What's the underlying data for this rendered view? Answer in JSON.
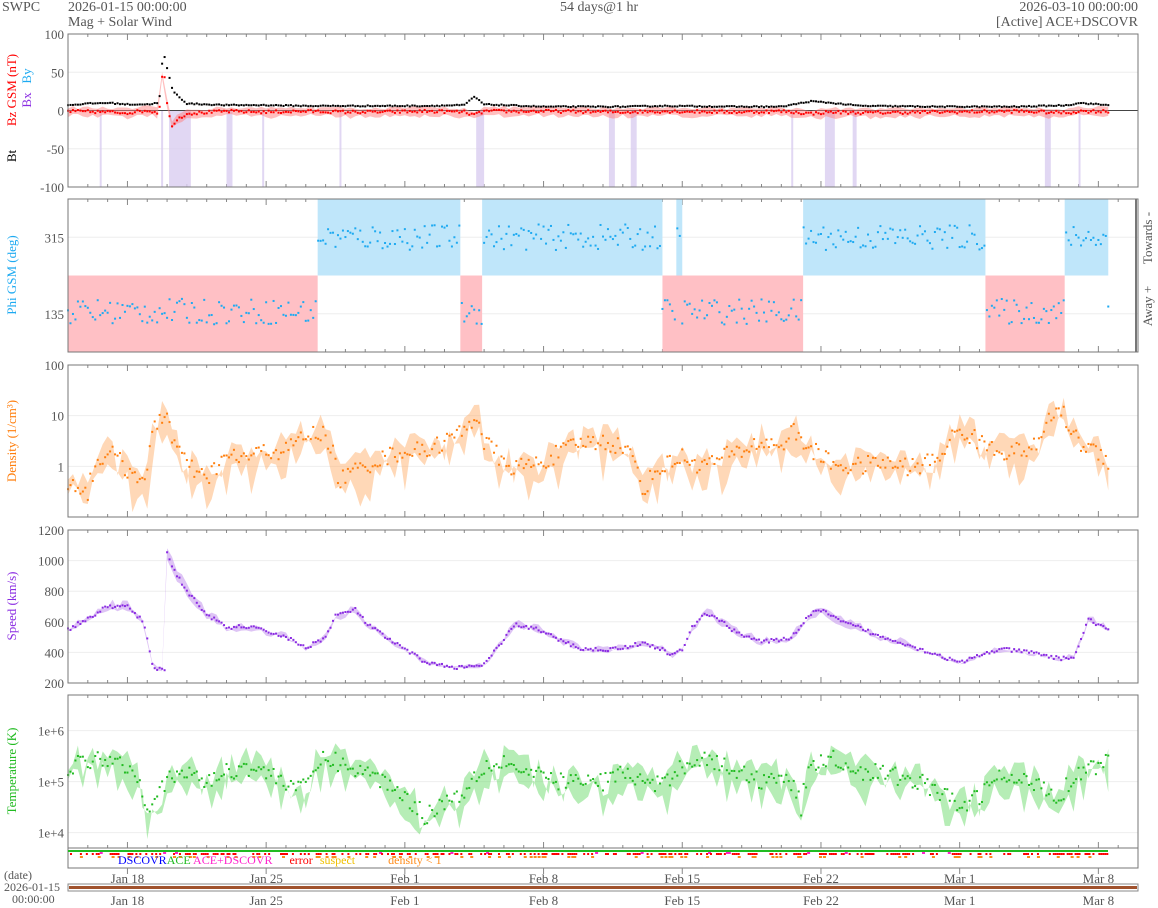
{
  "header": {
    "org": "SWPC",
    "start": "2026-01-15 00:00:00",
    "product": "Mag + Solar Wind",
    "span": "54 days@1 hr",
    "end": "2026-03-10 00:00:00",
    "source_status": "[Active] ACE+DSCOVR"
  },
  "colors": {
    "bt": "#000000",
    "bz": "#ff0000",
    "bx": "#8a2be2",
    "by": "#1eaaf1",
    "phi": "#1eaaf1",
    "density": "#ff7f0e",
    "speed": "#8a2be2",
    "temperature": "#22bb22",
    "towards": "#bfe6fa",
    "away": "#ffc0c5"
  },
  "chart_data": [
    {
      "type": "scatter",
      "name": "mag",
      "ylabel_parts": [
        "Bt",
        "Bz GSM (nT)",
        "Bx",
        "By"
      ],
      "ylim": [
        -100,
        100
      ],
      "yticks": [
        "100",
        "50",
        "0",
        "-50",
        "-100"
      ],
      "ytick_values": [
        100,
        50,
        0,
        -50,
        -100
      ],
      "series": [
        {
          "name": "Bt",
          "points": [
            [
              0,
              7
            ],
            [
              1,
              9
            ],
            [
              2,
              10
            ],
            [
              3,
              8
            ],
            [
              4,
              8
            ],
            [
              4.6,
              10
            ],
            [
              4.8,
              78
            ],
            [
              5,
              55
            ],
            [
              5.3,
              25
            ],
            [
              5.6,
              18
            ],
            [
              6,
              9
            ],
            [
              8,
              7
            ],
            [
              10,
              7
            ],
            [
              12,
              6
            ],
            [
              14,
              6
            ],
            [
              16,
              6
            ],
            [
              18,
              6
            ],
            [
              20,
              7
            ],
            [
              20.5,
              18
            ],
            [
              21,
              8
            ],
            [
              24,
              5
            ],
            [
              28,
              5
            ],
            [
              30,
              6
            ],
            [
              34,
              5
            ],
            [
              36,
              5
            ],
            [
              37.5,
              12
            ],
            [
              38.5,
              10
            ],
            [
              40,
              6
            ],
            [
              44,
              5
            ],
            [
              48,
              5
            ],
            [
              50.5,
              7
            ],
            [
              51,
              10
            ],
            [
              52.5,
              7
            ]
          ]
        },
        {
          "name": "Bz GSM",
          "points": [
            [
              0,
              -1
            ],
            [
              2,
              -2
            ],
            [
              3,
              -3
            ],
            [
              4,
              0
            ],
            [
              4.6,
              -3
            ],
            [
              4.8,
              62
            ],
            [
              5,
              10
            ],
            [
              5.2,
              -20
            ],
            [
              5.6,
              -10
            ],
            [
              6,
              -4
            ],
            [
              8,
              -1
            ],
            [
              10,
              -2
            ],
            [
              12,
              -1
            ],
            [
              14,
              -2
            ],
            [
              16,
              -2
            ],
            [
              18,
              -1
            ],
            [
              20,
              -2
            ],
            [
              20.5,
              -6
            ],
            [
              21,
              -1
            ],
            [
              24,
              -1
            ],
            [
              28,
              -2
            ],
            [
              30,
              -1
            ],
            [
              34,
              -2
            ],
            [
              36,
              -1
            ],
            [
              37.5,
              -4
            ],
            [
              38.5,
              -2
            ],
            [
              40,
              -3
            ],
            [
              44,
              -2
            ],
            [
              48,
              -1
            ],
            [
              50.5,
              -3
            ],
            [
              51,
              -1
            ],
            [
              52.5,
              -1
            ]
          ]
        }
      ],
      "southward_intervals_days": [
        [
          1.6,
          1.7
        ],
        [
          4.7,
          4.8
        ],
        [
          5.1,
          6.2
        ],
        [
          8.0,
          8.3
        ],
        [
          9.8,
          9.9
        ],
        [
          13.7,
          13.8
        ],
        [
          20.6,
          21.0
        ],
        [
          27.3,
          27.6
        ],
        [
          28.4,
          28.7
        ],
        [
          36.5,
          36.6
        ],
        [
          38.2,
          38.7
        ],
        [
          39.6,
          39.8
        ],
        [
          49.3,
          49.6
        ],
        [
          51.0,
          51.1
        ]
      ]
    },
    {
      "type": "scatter",
      "name": "phi",
      "ylabel": "Phi GSM (deg)",
      "ylim": [
        45,
        405
      ],
      "yticks": [
        "315",
        "135"
      ],
      "ytick_values": [
        315,
        135
      ],
      "right_labels": [
        "Towards -",
        "Away +"
      ],
      "towards_sectors_days": [
        [
          12.6,
          19.8
        ],
        [
          20.9,
          30.0
        ],
        [
          30.7,
          31.0
        ],
        [
          37.1,
          46.3
        ],
        [
          50.3,
          52.5
        ]
      ],
      "away_sectors_days": [
        [
          0,
          12.6
        ],
        [
          19.8,
          20.9
        ],
        [
          30.0,
          37.1
        ],
        [
          46.3,
          50.3
        ]
      ],
      "typical_towards_deg": 315,
      "typical_away_deg": 140
    },
    {
      "type": "scatter",
      "name": "density",
      "ylabel": "Density (1/cm³)",
      "yscale": "log",
      "ylim": [
        0.1,
        100
      ],
      "yticks": [
        "100",
        "10",
        "1"
      ],
      "ytick_values": [
        100,
        10,
        1
      ],
      "points": [
        [
          0,
          0.5
        ],
        [
          1,
          0.3
        ],
        [
          2,
          2
        ],
        [
          3,
          0.8
        ],
        [
          4,
          0.6
        ],
        [
          4.9,
          12
        ],
        [
          5.3,
          3
        ],
        [
          6,
          1
        ],
        [
          7,
          0.5
        ],
        [
          8,
          1.5
        ],
        [
          9,
          1.5
        ],
        [
          10,
          2
        ],
        [
          11,
          2
        ],
        [
          12,
          4
        ],
        [
          12.9,
          4.5
        ],
        [
          13.6,
          0.5
        ],
        [
          15,
          1
        ],
        [
          16,
          1.5
        ],
        [
          17,
          2
        ],
        [
          18,
          2
        ],
        [
          19,
          3
        ],
        [
          20,
          5
        ],
        [
          20.6,
          10
        ],
        [
          21,
          3
        ],
        [
          22,
          1
        ],
        [
          23,
          1
        ],
        [
          24,
          1.2
        ],
        [
          25,
          2
        ],
        [
          26,
          3
        ],
        [
          27,
          3
        ],
        [
          28,
          2.5
        ],
        [
          29,
          0.3
        ],
        [
          30,
          1
        ],
        [
          31,
          1.5
        ],
        [
          32,
          1
        ],
        [
          33,
          1.5
        ],
        [
          34,
          2
        ],
        [
          35,
          3
        ],
        [
          36,
          2.5
        ],
        [
          36.6,
          5
        ],
        [
          37,
          3
        ],
        [
          38,
          1.5
        ],
        [
          39,
          1
        ],
        [
          40,
          1
        ],
        [
          41,
          1.2
        ],
        [
          42,
          1
        ],
        [
          43,
          1
        ],
        [
          44,
          1.5
        ],
        [
          45,
          5
        ],
        [
          46,
          3
        ],
        [
          47,
          2
        ],
        [
          48,
          2
        ],
        [
          49,
          2.5
        ],
        [
          50,
          14
        ],
        [
          50.6,
          5
        ],
        [
          51,
          3
        ],
        [
          52.5,
          1.3
        ]
      ]
    },
    {
      "type": "scatter",
      "name": "speed",
      "ylabel": "Speed (km/s)",
      "ylim": [
        200,
        1200
      ],
      "yticks": [
        "1200",
        "1000",
        "800",
        "600",
        "400",
        "200"
      ],
      "ytick_values": [
        1200,
        1000,
        800,
        600,
        400,
        200
      ],
      "points": [
        [
          0,
          550
        ],
        [
          1,
          620
        ],
        [
          2,
          700
        ],
        [
          3,
          700
        ],
        [
          3.8,
          600
        ],
        [
          4.3,
          300
        ],
        [
          4.9,
          290
        ],
        [
          5.0,
          1050
        ],
        [
          5.3,
          950
        ],
        [
          6,
          800
        ],
        [
          7,
          650
        ],
        [
          8,
          560
        ],
        [
          9,
          570
        ],
        [
          10,
          540
        ],
        [
          11,
          500
        ],
        [
          12,
          430
        ],
        [
          13,
          500
        ],
        [
          13.5,
          640
        ],
        [
          14.5,
          680
        ],
        [
          15,
          600
        ],
        [
          16,
          500
        ],
        [
          17,
          420
        ],
        [
          18,
          340
        ],
        [
          19,
          310
        ],
        [
          20,
          300
        ],
        [
          21,
          320
        ],
        [
          22,
          480
        ],
        [
          22.5,
          580
        ],
        [
          23.5,
          560
        ],
        [
          25,
          470
        ],
        [
          26,
          420
        ],
        [
          27.5,
          420
        ],
        [
          29,
          460
        ],
        [
          30,
          420
        ],
        [
          30.5,
          380
        ],
        [
          31,
          420
        ],
        [
          31.5,
          560
        ],
        [
          32,
          640
        ],
        [
          32.5,
          650
        ],
        [
          33.5,
          550
        ],
        [
          34,
          520
        ],
        [
          35,
          470
        ],
        [
          36,
          480
        ],
        [
          36.5,
          500
        ],
        [
          37.5,
          650
        ],
        [
          38,
          680
        ],
        [
          39,
          600
        ],
        [
          40,
          560
        ],
        [
          41,
          500
        ],
        [
          42,
          470
        ],
        [
          43,
          420
        ],
        [
          44,
          380
        ],
        [
          45,
          330
        ],
        [
          46,
          380
        ],
        [
          47,
          420
        ],
        [
          48,
          410
        ],
        [
          49,
          390
        ],
        [
          50,
          360
        ],
        [
          50.8,
          370
        ],
        [
          51.5,
          620
        ],
        [
          52.5,
          540
        ]
      ]
    },
    {
      "type": "scatter",
      "name": "temperature",
      "ylabel": "Temperature (K)",
      "yscale": "log",
      "ylim": [
        5000,
        5000000
      ],
      "yticks": [
        "1e+6",
        "1e+5",
        "1e+4"
      ],
      "ytick_values": [
        1000000,
        100000,
        10000
      ],
      "points": [
        [
          0,
          200000
        ],
        [
          1,
          250000
        ],
        [
          2,
          300000
        ],
        [
          3,
          200000
        ],
        [
          4,
          30000
        ],
        [
          5,
          100000
        ],
        [
          6,
          150000
        ],
        [
          7,
          100000
        ],
        [
          8,
          150000
        ],
        [
          9,
          200000
        ],
        [
          10,
          150000
        ],
        [
          11,
          100000
        ],
        [
          12,
          70000
        ],
        [
          13,
          300000
        ],
        [
          14,
          200000
        ],
        [
          15,
          150000
        ],
        [
          16,
          100000
        ],
        [
          17,
          50000
        ],
        [
          18,
          20000
        ],
        [
          19,
          40000
        ],
        [
          20,
          60000
        ],
        [
          21,
          200000
        ],
        [
          22,
          250000
        ],
        [
          23,
          150000
        ],
        [
          24,
          120000
        ],
        [
          25,
          100000
        ],
        [
          26,
          100000
        ],
        [
          27,
          100000
        ],
        [
          28,
          150000
        ],
        [
          29,
          100000
        ],
        [
          30,
          80000
        ],
        [
          31,
          200000
        ],
        [
          32,
          300000
        ],
        [
          33,
          200000
        ],
        [
          34,
          150000
        ],
        [
          35,
          100000
        ],
        [
          36,
          150000
        ],
        [
          37,
          30000
        ],
        [
          38,
          300000
        ],
        [
          39,
          250000
        ],
        [
          40,
          150000
        ],
        [
          41,
          150000
        ],
        [
          42,
          120000
        ],
        [
          43,
          100000
        ],
        [
          44,
          60000
        ],
        [
          45,
          30000
        ],
        [
          46,
          50000
        ],
        [
          47,
          120000
        ],
        [
          48,
          100000
        ],
        [
          49,
          100000
        ],
        [
          50,
          40000
        ],
        [
          51,
          150000
        ],
        [
          52.5,
          250000
        ]
      ]
    }
  ],
  "source_legend": [
    {
      "label": "DSCOVR",
      "color": "#0000ff"
    },
    {
      "label": "ACE",
      "color": "#22bb22"
    },
    {
      "label": "ACE+DSCOVR",
      "color": "#ff22cc"
    },
    {
      "label": "error",
      "color": "#ff0000"
    },
    {
      "label": "suspect",
      "color": "#f0c000"
    },
    {
      "label": "density < 1",
      "color": "#ff8c1a"
    }
  ],
  "x_axis": {
    "start_day": 0,
    "end_day": 54,
    "ticks": [
      {
        "day": 3,
        "label": "Jan 18"
      },
      {
        "day": 10,
        "label": "Jan 25"
      },
      {
        "day": 17,
        "label": "Feb 1"
      },
      {
        "day": 24,
        "label": "Feb 8"
      },
      {
        "day": 31,
        "label": "Feb 15"
      },
      {
        "day": 38,
        "label": "Feb 22"
      },
      {
        "day": 45,
        "label": "Mar 1"
      },
      {
        "day": 52,
        "label": "Mar 8"
      }
    ],
    "date_label": "(date)",
    "date_start": "2026-01-15",
    "time_start": "00:00:00"
  }
}
